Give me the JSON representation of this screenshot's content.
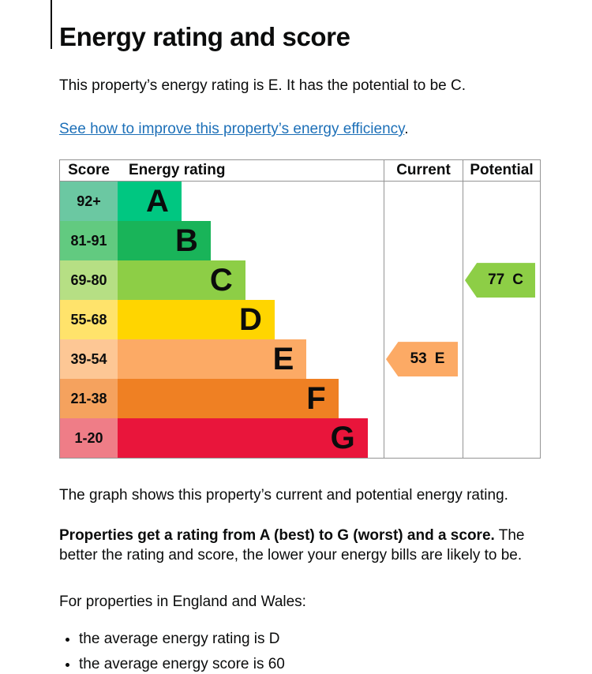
{
  "page": {
    "title": "Energy rating and score",
    "intro": "This property’s energy rating is E. It has the potential to be C.",
    "improve_link": "See how to improve this property’s energy efficiency",
    "improve_link_suffix": ".",
    "caption": "The graph shows this property’s current and potential energy rating.",
    "explain_bold": "Properties get a rating from A (best) to G (worst) and a score.",
    "explain_rest": " The better the rating and score, the lower your energy bills are likely to be.",
    "region_heading": "For properties in England and Wales:",
    "bullets": [
      "the average energy rating is D",
      "the average energy score is 60"
    ]
  },
  "chart_data": {
    "type": "bar",
    "title": "Energy rating and score",
    "headers": {
      "score": "Score",
      "rating": "Energy rating",
      "current": "Current",
      "potential": "Potential"
    },
    "bands": [
      {
        "letter": "A",
        "score_range": "92+",
        "length_pct": 24,
        "color": "#00c781",
        "tint": "#6bc8a2"
      },
      {
        "letter": "B",
        "score_range": "81-91",
        "length_pct": 35,
        "color": "#19b459",
        "tint": "#62ca80"
      },
      {
        "letter": "C",
        "score_range": "69-80",
        "length_pct": 48,
        "color": "#8dce46",
        "tint": "#b6df84"
      },
      {
        "letter": "D",
        "score_range": "55-68",
        "length_pct": 59,
        "color": "#ffd500",
        "tint": "#ffe36b"
      },
      {
        "letter": "E",
        "score_range": "39-54",
        "length_pct": 71,
        "color": "#fcaa65",
        "tint": "#fdc795"
      },
      {
        "letter": "F",
        "score_range": "21-38",
        "length_pct": 83,
        "color": "#ef8023",
        "tint": "#f5a25e"
      },
      {
        "letter": "G",
        "score_range": "1-20",
        "length_pct": 94,
        "color": "#e9153b",
        "tint": "#ef7d87"
      }
    ],
    "current": {
      "value": "53",
      "band": "E",
      "color": "#fcaa65"
    },
    "potential": {
      "value": "77",
      "band": "C",
      "color": "#8dce46"
    }
  }
}
